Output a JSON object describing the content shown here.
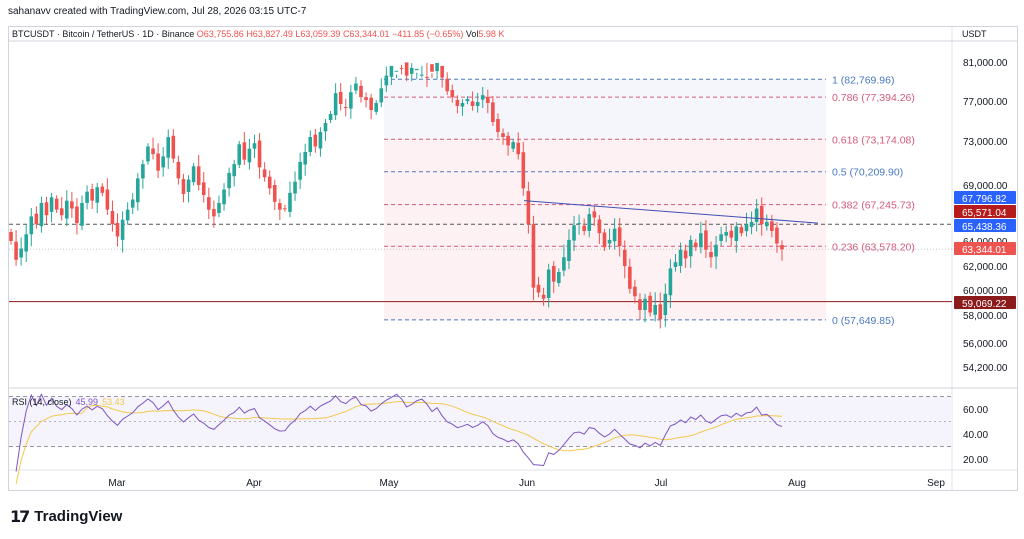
{
  "header": {
    "attribution": "sahanavv created with TradingView.com, Jul 28, 2026 03:15 UTC-7",
    "symbol_line": "BTCUSDT · Bitcoin / TetherUS · 1D · Binance",
    "o": "O63,755.86",
    "h": "H63,827.49",
    "l": "L63,059.39",
    "c": "C63,344.01",
    "chg": "−411.85 (−0.65%)",
    "vol_label": "Vol",
    "vol": "5.98 K",
    "currency": "USDT"
  },
  "rsi": {
    "label": "RSI (14, close)",
    "value": "45.99",
    "ma_value": "53.43",
    "ticks": [
      "60.00",
      "40.00",
      "20.00"
    ]
  },
  "brand": {
    "logo": "17",
    "name": "TradingView"
  },
  "colors": {
    "up": "#26a69a",
    "down": "#ef5350",
    "fib_blue": "#4a78c4",
    "fib_red": "#d45a7a",
    "rsi": "#7e57c2",
    "rsi_ma": "#f2c94c",
    "support": "#8b1a1a"
  },
  "chart_data": {
    "type": "candlestick",
    "symbol": "BTCUSDT",
    "timeframe": "1D",
    "x_ticks": [
      "Mar",
      "Apr",
      "May",
      "Jun",
      "Jul",
      "Aug",
      "Sep"
    ],
    "y_ticks": [
      "81,000.00",
      "77,000.00",
      "73,000.00",
      "69,000.00",
      "64,000.00",
      "62,000.00",
      "60,000.00",
      "58,000.00",
      "56,000.00",
      "54,200.00"
    ],
    "price_tags": [
      {
        "text": "67,796.82",
        "color": "#2962ff"
      },
      {
        "text": "65,571.04",
        "color": "#b71c1c"
      },
      {
        "text": "65,438.36",
        "color": "#2962ff"
      },
      {
        "text": "63,344.01",
        "color": "#ef5350"
      },
      {
        "text": "59,069.22",
        "color": "#8b1a1a"
      }
    ],
    "fib_levels": [
      {
        "label": "1 (82,769.96)",
        "price": 82769.96,
        "color": "#4a78c4"
      },
      {
        "label": "0.786 (77,394.26)",
        "price": 77394.26,
        "color": "#d45a7a"
      },
      {
        "label": "0.618 (73,174.08)",
        "price": 73174.08,
        "color": "#d45a7a"
      },
      {
        "label": "0.5 (70,209.90)",
        "price": 70209.9,
        "color": "#4a78c4"
      },
      {
        "label": "0.382 (67,245.73)",
        "price": 67245.73,
        "color": "#d45a7a"
      },
      {
        "label": "0.236 (63,578.20)",
        "price": 63578.2,
        "color": "#d45a7a"
      },
      {
        "label": "0 (57,649.85)",
        "price": 57649.85,
        "color": "#4a78c4"
      }
    ],
    "support_level": 59069.22,
    "resistance_level": 65500,
    "closes": [
      64000,
      62500,
      63400,
      64600,
      66200,
      65500,
      67400,
      66300,
      67900,
      66800,
      66300,
      67600,
      66900,
      65600,
      67400,
      68400,
      67600,
      68800,
      68300,
      66800,
      65500,
      64400,
      65900,
      66800,
      67700,
      69600,
      70900,
      72500,
      71800,
      70300,
      71600,
      73400,
      71400,
      69600,
      68200,
      69500,
      70700,
      69000,
      68100,
      66800,
      66200,
      67400,
      68600,
      70100,
      70900,
      72700,
      71300,
      72300,
      72800,
      70600,
      69700,
      68700,
      67500,
      66800,
      66900,
      68300,
      69300,
      71100,
      72000,
      73400,
      72500,
      73900,
      74800,
      75700,
      77800,
      76700,
      76300,
      77900,
      78800,
      77400,
      77100,
      76100,
      76800,
      78300,
      79600,
      80600,
      81900,
      81100,
      79600,
      80400,
      81700,
      82300,
      81400,
      80000,
      81100,
      79400,
      78000,
      77400,
      76500,
      76800,
      77200,
      76500,
      76900,
      77600,
      76800,
      74900,
      73900,
      73400,
      72600,
      72900,
      71800,
      68700,
      65500,
      60200,
      59800,
      59300,
      61700,
      60700,
      61500,
      62700,
      64100,
      65400,
      65600,
      64900,
      66400,
      66100,
      64700,
      63500,
      64100,
      65100,
      63600,
      62000,
      60100,
      59500,
      58400,
      59300,
      58200,
      58800,
      57700,
      59700,
      61800,
      62300,
      63300,
      62600,
      64100,
      63500,
      64700,
      63300,
      62700,
      63700,
      64600,
      64800,
      64300,
      65300,
      64700,
      65500,
      65700,
      66900,
      65500,
      65700,
      64900,
      63800,
      63344
    ]
  }
}
